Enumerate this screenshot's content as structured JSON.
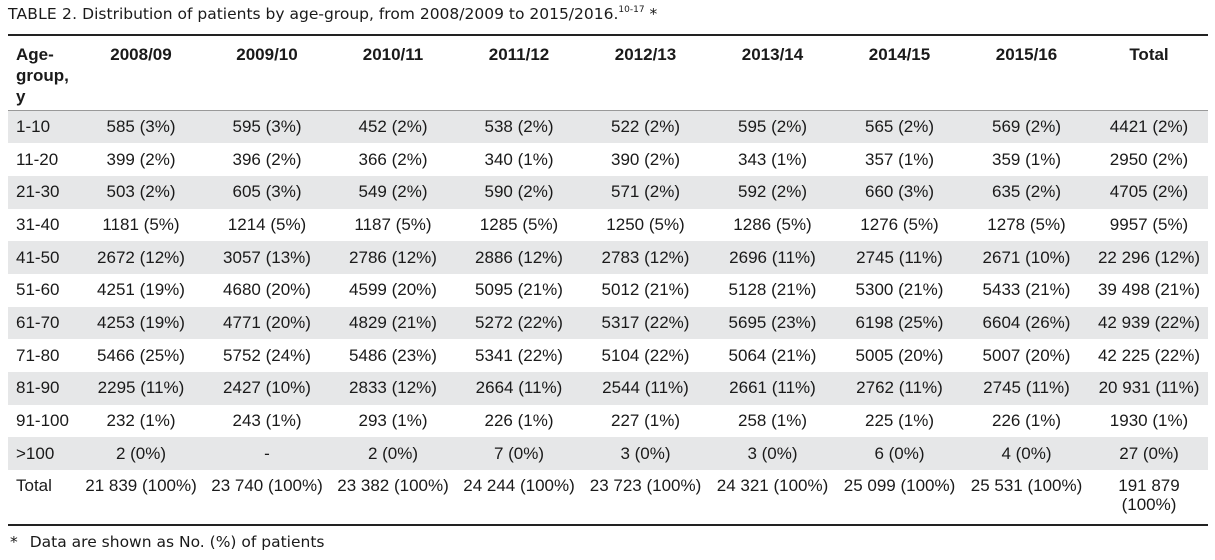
{
  "caption": {
    "label": "TABLE 2.",
    "text": " Distribution of patients by age-group, from 2008/2009 to 2015/2016.",
    "refs": "10-17",
    "mark": " *"
  },
  "table": {
    "headers": [
      "Age-group, y",
      "2008/09",
      "2009/10",
      "2010/11",
      "2011/12",
      "2012/13",
      "2013/14",
      "2014/15",
      "2015/16",
      "Total"
    ],
    "header_lines_age": [
      "Age-",
      "group,",
      "y"
    ],
    "rows": [
      [
        "1-10",
        "585 (3%)",
        "595 (3%)",
        "452 (2%)",
        "538 (2%)",
        "522 (2%)",
        "595 (2%)",
        "565 (2%)",
        "569 (2%)",
        "4421 (2%)"
      ],
      [
        "11-20",
        "399 (2%)",
        "396 (2%)",
        "366 (2%)",
        "340 (1%)",
        "390 (2%)",
        "343 (1%)",
        "357 (1%)",
        "359 (1%)",
        "2950 (2%)"
      ],
      [
        "21-30",
        "503 (2%)",
        "605 (3%)",
        "549 (2%)",
        "590 (2%)",
        "571 (2%)",
        "592 (2%)",
        "660 (3%)",
        "635 (2%)",
        "4705 (2%)"
      ],
      [
        "31-40",
        "1181 (5%)",
        "1214 (5%)",
        "1187 (5%)",
        "1285 (5%)",
        "1250 (5%)",
        "1286 (5%)",
        "1276 (5%)",
        "1278 (5%)",
        "9957 (5%)"
      ],
      [
        "41-50",
        "2672 (12%)",
        "3057 (13%)",
        "2786 (12%)",
        "2886 (12%)",
        "2783 (12%)",
        "2696 (11%)",
        "2745 (11%)",
        "2671 (10%)",
        "22 296 (12%)"
      ],
      [
        "51-60",
        "4251 (19%)",
        "4680 (20%)",
        "4599 (20%)",
        "5095 (21%)",
        "5012 (21%)",
        "5128 (21%)",
        "5300 (21%)",
        "5433 (21%)",
        "39 498 (21%)"
      ],
      [
        "61-70",
        "4253 (19%)",
        "4771 (20%)",
        "4829 (21%)",
        "5272 (22%)",
        "5317 (22%)",
        "5695 (23%)",
        "6198 (25%)",
        "6604 (26%)",
        "42 939 (22%)"
      ],
      [
        "71-80",
        "5466 (25%)",
        "5752 (24%)",
        "5486 (23%)",
        "5341 (22%)",
        "5104 (22%)",
        "5064 (21%)",
        "5005 (20%)",
        "5007 (20%)",
        "42 225 (22%)"
      ],
      [
        "81-90",
        "2295 (11%)",
        "2427 (10%)",
        "2833 (12%)",
        "2664 (11%)",
        "2544 (11%)",
        "2661 (11%)",
        "2762 (11%)",
        "2745 (11%)",
        "20 931 (11%)"
      ],
      [
        "91-100",
        "232 (1%)",
        "243 (1%)",
        "293 (1%)",
        "226 (1%)",
        "227 (1%)",
        "258 (1%)",
        "225 (1%)",
        "226 (1%)",
        "1930 (1%)"
      ],
      [
        ">100",
        "2 (0%)",
        "-",
        "2 (0%)",
        "7 (0%)",
        "3 (0%)",
        "3 (0%)",
        "6 (0%)",
        "4 (0%)",
        "27 (0%)"
      ]
    ],
    "total_row": [
      "Total",
      "21 839 (100%)",
      "23 740 (100%)",
      "23 382 (100%)",
      "24 244 (100%)",
      "23 723 (100%)",
      "24 321 (100%)",
      "25 099 (100%)",
      "25 531 (100%)",
      "191 879 (100%)"
    ],
    "stripe_color": "#e6e7e8"
  },
  "footnote": {
    "mark": "*",
    "text": "Data are shown as No. (%) of patients"
  }
}
